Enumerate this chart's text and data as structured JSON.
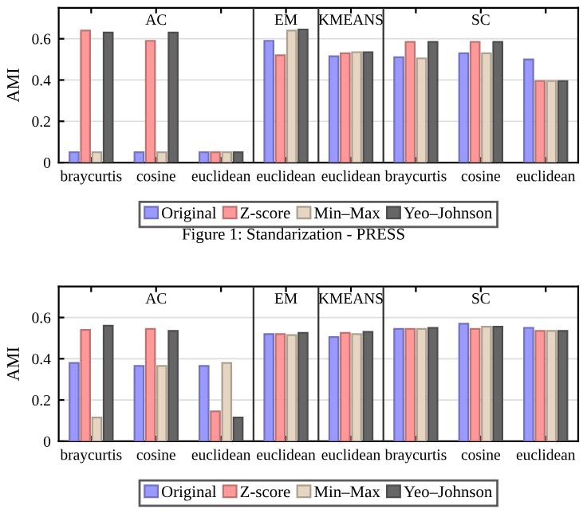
{
  "chart_data": [
    {
      "type": "bar",
      "ylabel": "AMI",
      "categories": [
        "braycurtis",
        "cosine",
        "euclidean",
        "euclidean",
        "euclidean",
        "braycurtis",
        "cosine",
        "euclidean"
      ],
      "series": [
        {
          "name": "Original",
          "color": "#9999ff",
          "values": [
            0.05,
            0.05,
            0.05,
            0.59,
            0.515,
            0.51,
            0.53,
            0.5
          ]
        },
        {
          "name": "Z-score",
          "color": "#ff9999",
          "values": [
            0.64,
            0.59,
            0.05,
            0.52,
            0.53,
            0.585,
            0.585,
            0.395
          ]
        },
        {
          "name": "Min–Max",
          "color": "#e6d5c0",
          "values": [
            0.05,
            0.05,
            0.05,
            0.64,
            0.535,
            0.505,
            0.53,
            0.395
          ]
        },
        {
          "name": "Yeo–Johnson",
          "color": "#666666",
          "values": [
            0.63,
            0.63,
            0.05,
            0.645,
            0.535,
            0.585,
            0.585,
            0.395
          ]
        }
      ],
      "ylim": [
        0,
        0.75
      ],
      "yticks": [
        0,
        0.2,
        0.4,
        0.6
      ],
      "grid": "y",
      "legend": "bottom",
      "annotations": [
        "AC",
        "EM",
        "KMEANS",
        "SC",
        "Figure 1: Standarization - PRESS"
      ]
    },
    {
      "type": "bar",
      "ylabel": "AMI",
      "categories": [
        "braycurtis",
        "cosine",
        "euclidean",
        "euclidean",
        "euclidean",
        "braycurtis",
        "cosine",
        "euclidean"
      ],
      "series": [
        {
          "name": "Original",
          "color": "#9999ff",
          "values": [
            0.38,
            0.365,
            0.365,
            0.52,
            0.505,
            0.545,
            0.57,
            0.55
          ]
        },
        {
          "name": "Z-score",
          "color": "#ff9999",
          "values": [
            0.54,
            0.545,
            0.145,
            0.52,
            0.525,
            0.545,
            0.545,
            0.535
          ]
        },
        {
          "name": "Min–Max",
          "color": "#e6d5c0",
          "values": [
            0.115,
            0.365,
            0.38,
            0.515,
            0.52,
            0.545,
            0.555,
            0.535
          ]
        },
        {
          "name": "Yeo–Johnson",
          "color": "#666666",
          "values": [
            0.56,
            0.535,
            0.115,
            0.525,
            0.53,
            0.55,
            0.555,
            0.535
          ]
        }
      ],
      "ylim": [
        0,
        0.75
      ],
      "yticks": [
        0,
        0.2,
        0.4,
        0.6
      ],
      "grid": "y",
      "legend": "bottom",
      "annotations": [
        "AC",
        "EM",
        "KMEANS",
        "SC"
      ]
    }
  ]
}
